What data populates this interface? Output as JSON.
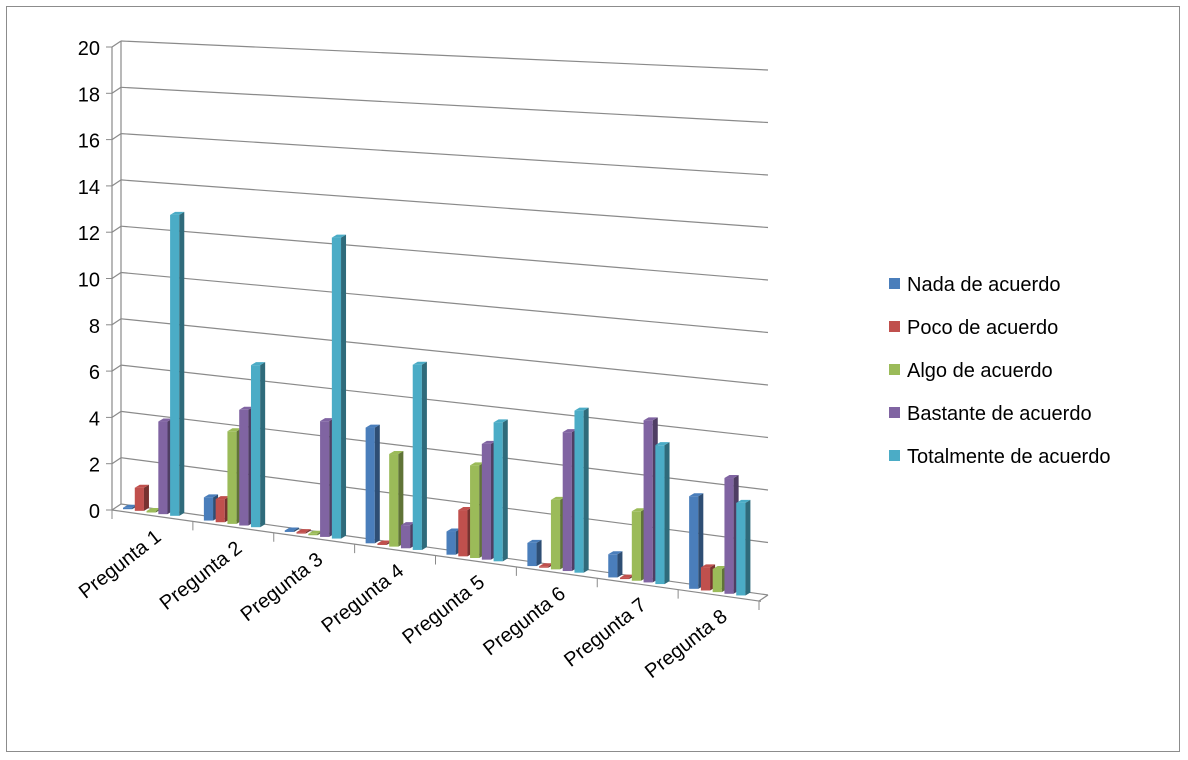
{
  "chart_data": {
    "type": "bar",
    "title": "",
    "xlabel": "",
    "ylabel": "",
    "ylim": [
      0,
      20
    ],
    "yticks": [
      0,
      2,
      4,
      6,
      8,
      10,
      12,
      14,
      16,
      18,
      20
    ],
    "grid": true,
    "legend_position": "right",
    "categories": [
      "Pregunta 1",
      "Pregunta 2",
      "Pregunta 3",
      "Pregunta 4",
      "Pregunta 5",
      "Pregunta 6",
      "Pregunta 7",
      "Pregunta 8"
    ],
    "series": [
      {
        "name": "Nada de acuerdo",
        "color": "#4a7ebb",
        "values": [
          0,
          1,
          0,
          5,
          1,
          1,
          1,
          4
        ]
      },
      {
        "name": "Poco de acuerdo",
        "color": "#c0504d",
        "values": [
          1,
          1,
          0,
          0,
          2,
          0,
          0,
          1
        ]
      },
      {
        "name": "Algo de acuerdo",
        "color": "#9bbb59",
        "values": [
          0,
          4,
          0,
          4,
          4,
          3,
          3,
          1
        ]
      },
      {
        "name": "Bastante de acuerdo",
        "color": "#8064a2",
        "values": [
          4,
          5,
          5,
          1,
          5,
          6,
          7,
          5
        ]
      },
      {
        "name": "Totalmente de acuerdo",
        "color": "#4bacc6",
        "values": [
          13,
          7,
          13,
          8,
          6,
          7,
          6,
          4
        ]
      }
    ]
  }
}
